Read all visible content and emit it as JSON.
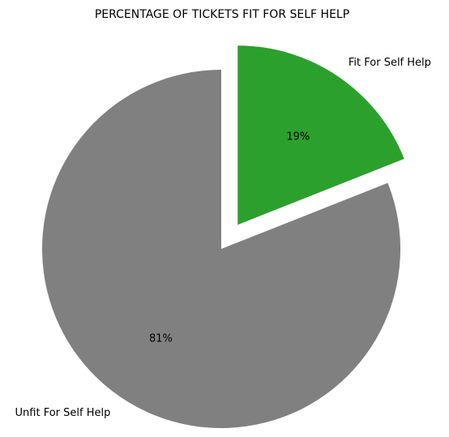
{
  "chart_data": {
    "type": "pie",
    "title": "PERCENTAGE OF TICKETS FIT FOR SELF HELP",
    "slices": [
      {
        "label": "Fit For Self Help",
        "value": 19,
        "pct_label": "19%",
        "color": "#2ca02c",
        "exploded": true
      },
      {
        "label": "Unfit For Self Help",
        "value": 81,
        "pct_label": "81%",
        "color": "#808080",
        "exploded": false
      }
    ],
    "start_angle_deg": 90,
    "direction": "clockwise"
  }
}
